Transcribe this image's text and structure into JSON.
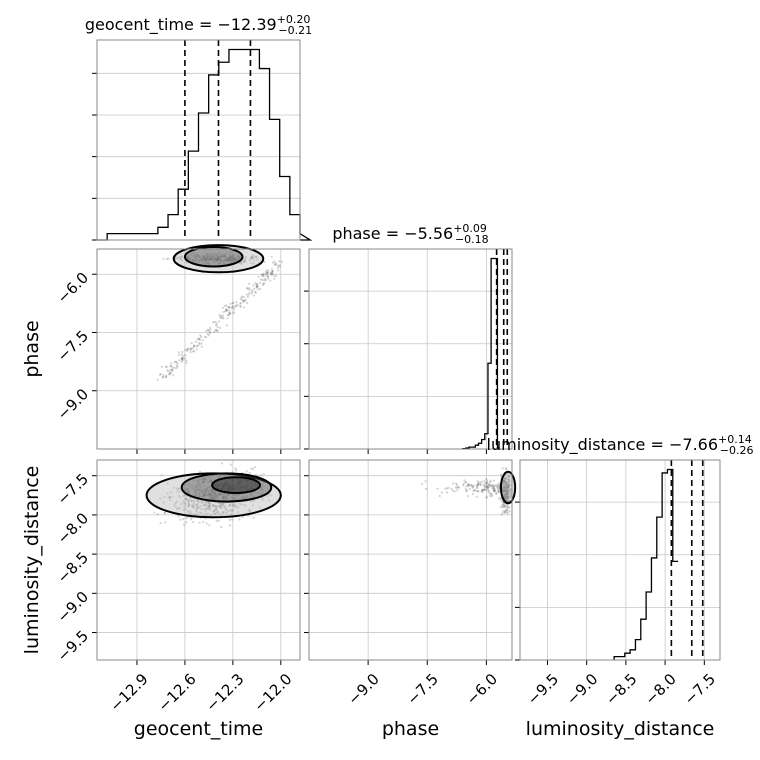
{
  "chart_data": {
    "type": "corner",
    "parameters": [
      "geocent_time",
      "phase",
      "luminosity_distance"
    ],
    "grid": true,
    "panels": [
      {
        "kind": "hist",
        "param": "geocent_time",
        "title": {
          "prefix": "geocent_time = ",
          "value": "−12.39",
          "upper": "+0.20",
          "lower": "−0.21"
        },
        "xlim": [
          -13.15,
          -11.88
        ],
        "quantiles": [
          -12.6,
          -12.39,
          -12.19
        ],
        "bins_start": -13.15,
        "bin_width": 0.0635,
        "counts": [
          0,
          1,
          1,
          1,
          1,
          1,
          2,
          4,
          8,
          14,
          20,
          26,
          28,
          30,
          30,
          30,
          27,
          19,
          10,
          4,
          1,
          0
        ]
      },
      {
        "kind": "hist",
        "param": "phase",
        "title": {
          "prefix": "phase = ",
          "value": "−5.56",
          "upper": "+0.09",
          "lower": "−0.18"
        },
        "xlim": [
          -10.5,
          -5.35
        ],
        "xticks": [
          "-9.0",
          "-7.5",
          "-6.0"
        ],
        "quantiles": [
          -5.74,
          -5.56,
          -5.47
        ],
        "bins_start": -6.6,
        "bin_width": 0.08,
        "counts": [
          0.2,
          0.5,
          1,
          1,
          2,
          3,
          5,
          8,
          45,
          100,
          100,
          0
        ]
      },
      {
        "kind": "hist",
        "param": "luminosity_distance",
        "title": {
          "prefix": "luminosity_distance = ",
          "value": "−7.66",
          "upper": "+0.14",
          "lower": "−0.26"
        },
        "xlim": [
          -9.85,
          -7.3
        ],
        "xticks": [
          "-9.5",
          "-9.0",
          "-8.5",
          "-8.0",
          "-7.5"
        ],
        "xlabel": "luminosity_distance",
        "quantiles": [
          -7.92,
          -7.66,
          -7.52
        ],
        "bins_start": -8.65,
        "bin_width": 0.068,
        "counts": [
          1,
          1,
          2,
          3,
          6,
          12,
          20,
          30,
          42,
          55,
          56,
          29
        ]
      },
      {
        "kind": "2d",
        "x": "geocent_time",
        "y": "phase",
        "xlim": [
          -13.15,
          -11.88
        ],
        "ylim": [
          -10.5,
          -5.35
        ],
        "yticks": [
          "-6.0",
          "-7.5",
          "-9.0"
        ],
        "ylabel": "phase",
        "contours": [
          {
            "center": [
              -12.39,
              -5.6
            ],
            "rx": 0.28,
            "ry": 0.35
          },
          {
            "center": [
              -12.42,
              -5.55
            ],
            "rx": 0.18,
            "ry": 0.25
          }
        ]
      },
      {
        "kind": "2d",
        "x": "geocent_time",
        "y": "luminosity_distance",
        "xlim": [
          -13.15,
          -11.88
        ],
        "ylim": [
          -9.85,
          -7.3
        ],
        "xticks": [
          "-12.9",
          "-12.6",
          "-12.3",
          "-12.0"
        ],
        "yticks": [
          "-7.5",
          "-8.0",
          "-8.5",
          "-9.0",
          "-9.5"
        ],
        "xlabel": "geocent_time",
        "ylabel": "luminosity_distance",
        "contours": [
          {
            "center": [
              -12.42,
              -7.75
            ],
            "rx": 0.42,
            "ry": 0.28
          },
          {
            "center": [
              -12.34,
              -7.65
            ],
            "rx": 0.28,
            "ry": 0.18
          },
          {
            "center": [
              -12.28,
              -7.62
            ],
            "rx": 0.15,
            "ry": 0.1
          }
        ]
      },
      {
        "kind": "2d",
        "x": "phase",
        "y": "luminosity_distance",
        "xlim": [
          -10.5,
          -5.35
        ],
        "ylim": [
          -9.85,
          -7.3
        ],
        "xlabel": "phase",
        "contours": [
          {
            "center": [
              -5.45,
              -7.65
            ],
            "rx": 0.18,
            "ry": 0.2
          }
        ]
      }
    ]
  }
}
